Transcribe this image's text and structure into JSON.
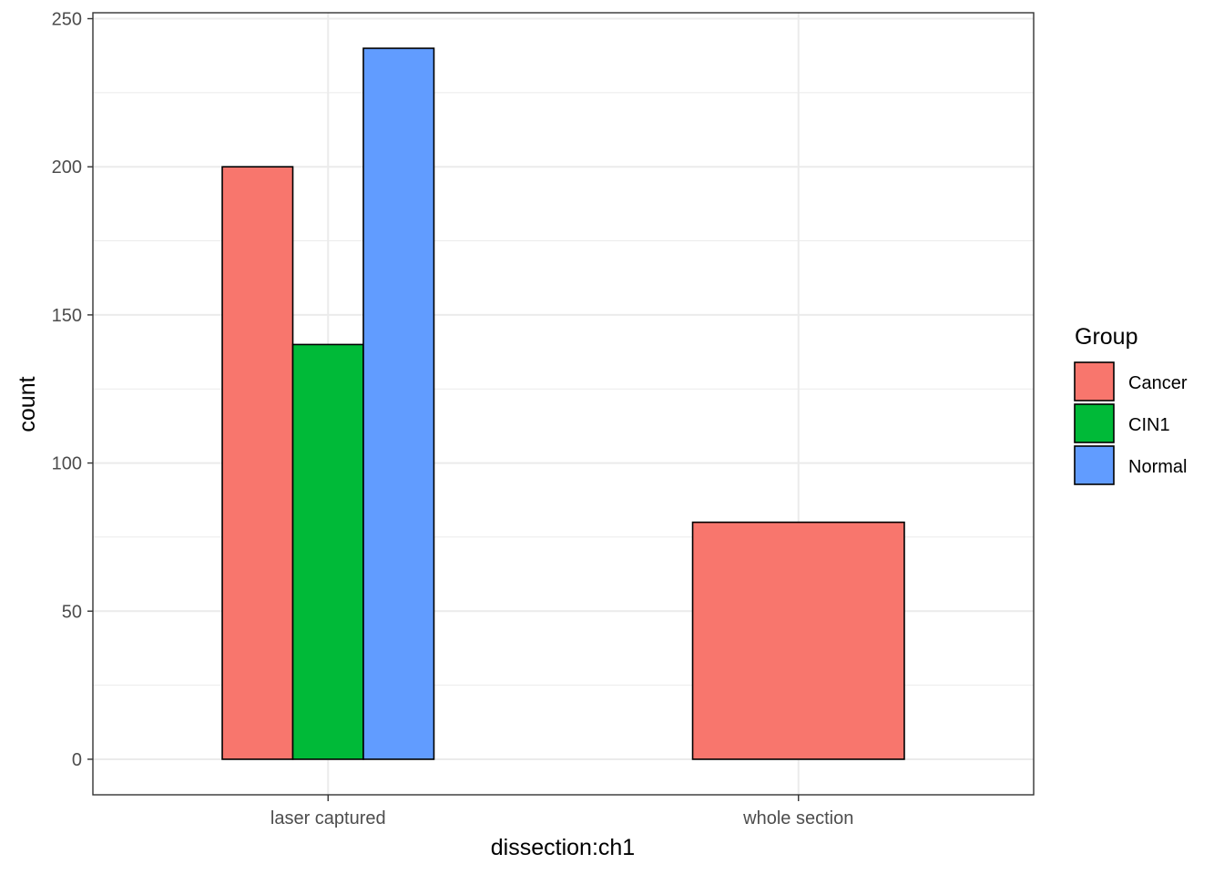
{
  "chart_data": {
    "type": "bar",
    "xlabel": "dissection:ch1",
    "ylabel": "count",
    "ylim": [
      -12,
      252
    ],
    "yticks": [
      0,
      50,
      100,
      150,
      200,
      250
    ],
    "grid": true,
    "legend_position": "right",
    "legend_title": "Group",
    "categories": [
      "laser captured",
      "whole section"
    ],
    "series": [
      {
        "name": "Cancer",
        "color": "#F8766D",
        "values": [
          200,
          80
        ]
      },
      {
        "name": "CIN1",
        "color": "#00BA38",
        "values": [
          140,
          null
        ]
      },
      {
        "name": "Normal",
        "color": "#619CFF",
        "values": [
          240,
          null
        ]
      }
    ]
  }
}
